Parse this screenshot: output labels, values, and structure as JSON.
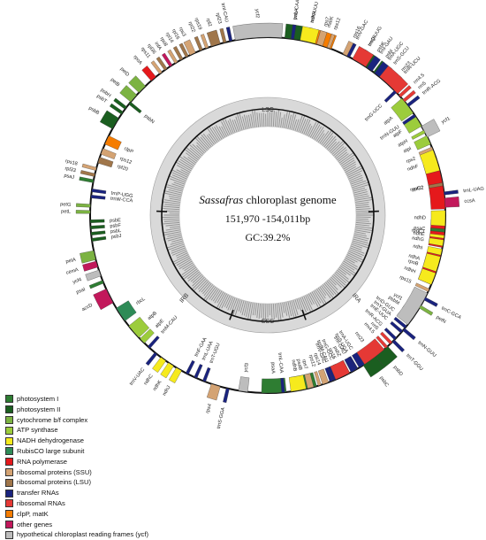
{
  "center": {
    "title_italic": "Sassafras",
    "title_rest": " chloroplast genome",
    "size": "151,970 -154,011bp",
    "gc": "GC:39.2%"
  },
  "regions": [
    "LSC",
    "IRB",
    "SSC",
    "IRA"
  ],
  "legend": [
    {
      "label": "photosystem I",
      "color": "#2e7d32"
    },
    {
      "label": "photosystem II",
      "color": "#1b5e20"
    },
    {
      "label": "cytochrome b/f complex",
      "color": "#7cb342"
    },
    {
      "label": "ATP synthase",
      "color": "#9ccc3c"
    },
    {
      "label": "NADH dehydrogenase",
      "color": "#f6ea1d"
    },
    {
      "label": "RubisCO large subunit",
      "color": "#2e8b57"
    },
    {
      "label": "RNA polymerase",
      "color": "#e5191c"
    },
    {
      "label": "ribosomal proteins (SSU)",
      "color": "#d4a373"
    },
    {
      "label": "ribosomal proteins (LSU)",
      "color": "#a0764a"
    },
    {
      "label": "transfer RNAs",
      "color": "#1a237e"
    },
    {
      "label": "ribosomal RNAs",
      "color": "#e53935"
    },
    {
      "label": "clpP, matK",
      "color": "#f57c00"
    },
    {
      "label": "other genes",
      "color": "#c2185b"
    },
    {
      "label": "hypothetical chloroplast reading frames (ycf)",
      "color": "#bdbdbd"
    }
  ],
  "genes": [
    {
      "name": "psbA",
      "angle": 8,
      "out": true,
      "w": 5,
      "color": "#1b5e20"
    },
    {
      "name": "trnK-UUU",
      "angle": 13,
      "out": true,
      "w": 1,
      "color": "#1a237e"
    },
    {
      "name": "matK",
      "angle": 18,
      "out": true,
      "w": 6,
      "color": "#f57c00"
    },
    {
      "name": "rps16",
      "angle": 26,
      "out": true,
      "w": 2,
      "color": "#d4a373"
    },
    {
      "name": "trnQ-UUG",
      "angle": 31,
      "out": true,
      "w": 1,
      "color": "#1a237e"
    },
    {
      "name": "psbK",
      "angle": 34,
      "out": true,
      "w": 2,
      "color": "#1b5e20"
    },
    {
      "name": "psbI",
      "angle": 37,
      "out": true,
      "w": 1,
      "color": "#1b5e20"
    },
    {
      "name": "trnS-GCU",
      "angle": 40,
      "out": true,
      "w": 1,
      "color": "#1a237e"
    },
    {
      "name": "trnR-UCU",
      "angle": 44,
      "out": true,
      "w": 1,
      "color": "#1a237e"
    },
    {
      "name": "trnG-UCC",
      "angle": 46,
      "out": false,
      "w": 1,
      "color": "#1a237e"
    },
    {
      "name": "atpA",
      "angle": 52,
      "out": false,
      "w": 6,
      "color": "#9ccc3c"
    },
    {
      "name": "atpF",
      "angle": 58,
      "out": false,
      "w": 4,
      "color": "#9ccc3c"
    },
    {
      "name": "atpH",
      "angle": 62,
      "out": false,
      "w": 1,
      "color": "#9ccc3c"
    },
    {
      "name": "atpI",
      "angle": 65,
      "out": false,
      "w": 3,
      "color": "#9ccc3c"
    },
    {
      "name": "rps2",
      "angle": 69,
      "out": false,
      "w": 3,
      "color": "#d4a373"
    },
    {
      "name": "rpoC2",
      "angle": 80,
      "out": false,
      "w": 16,
      "color": "#e5191c"
    },
    {
      "name": "rpoC1",
      "angle": 96,
      "out": false,
      "w": 9,
      "color": "#e5191c"
    },
    {
      "name": "rpoB",
      "angle": 108,
      "out": false,
      "w": 10,
      "color": "#e5191c"
    },
    {
      "name": "trnC-GCA",
      "angle": 118,
      "out": true,
      "w": 1,
      "color": "#1a237e"
    },
    {
      "name": "petN",
      "angle": 121,
      "out": true,
      "w": 1,
      "color": "#7cb342"
    },
    {
      "name": "psbM",
      "angle": 124,
      "out": false,
      "w": 1,
      "color": "#1b5e20"
    },
    {
      "name": "trnD-GUC",
      "angle": 127,
      "out": false,
      "w": 1,
      "color": "#1a237e"
    },
    {
      "name": "trnY-GUA",
      "angle": 129,
      "out": false,
      "w": 1,
      "color": "#1a237e"
    },
    {
      "name": "trnE-UUC",
      "angle": 131,
      "out": false,
      "w": 1,
      "color": "#1a237e"
    },
    {
      "name": "trnT-GGU",
      "angle": 135,
      "out": true,
      "w": 1,
      "color": "#1a237e"
    },
    {
      "name": "psbD",
      "angle": 140,
      "out": true,
      "w": 5,
      "color": "#1b5e20"
    },
    {
      "name": "psbC",
      "angle": 145,
      "out": true,
      "w": 5,
      "color": "#1b5e20"
    },
    {
      "name": "trnS-UGA",
      "angle": 150,
      "out": false,
      "w": 1,
      "color": "#1a237e"
    },
    {
      "name": "psbZ",
      "angle": 153,
      "out": false,
      "w": 1,
      "color": "#1b5e20"
    },
    {
      "name": "trnG-GCC",
      "angle": 156,
      "out": false,
      "w": 1,
      "color": "#1a237e"
    },
    {
      "name": "trnfM-CAU",
      "angle": 158,
      "out": false,
      "w": 1,
      "color": "#1a237e"
    },
    {
      "name": "rps14",
      "angle": 161,
      "out": false,
      "w": 2,
      "color": "#d4a373"
    },
    {
      "name": "psaB",
      "angle": 168,
      "out": false,
      "w": 8,
      "color": "#2e7d32"
    },
    {
      "name": "psaA",
      "angle": 178,
      "out": false,
      "w": 8,
      "color": "#2e7d32"
    },
    {
      "name": "ycf3",
      "angle": 188,
      "out": false,
      "w": 3,
      "color": "#bdbdbd"
    },
    {
      "name": "trnS-GGA",
      "angle": 193,
      "out": true,
      "w": 1,
      "color": "#1a237e"
    },
    {
      "name": "rps4",
      "angle": 197,
      "out": true,
      "w": 3,
      "color": "#d4a373"
    },
    {
      "name": "trnT-UGU",
      "angle": 201,
      "out": false,
      "w": 1,
      "color": "#1a237e"
    },
    {
      "name": "trnL-UAA",
      "angle": 204,
      "out": false,
      "w": 1,
      "color": "#1a237e"
    },
    {
      "name": "trnF-GAA",
      "angle": 207,
      "out": false,
      "w": 1,
      "color": "#1a237e"
    },
    {
      "name": "ndhJ",
      "angle": 210,
      "out": true,
      "w": 2,
      "color": "#f6ea1d"
    },
    {
      "name": "ndhK",
      "angle": 213,
      "out": true,
      "w": 2,
      "color": "#f6ea1d"
    },
    {
      "name": "ndhC",
      "angle": 216,
      "out": true,
      "w": 2,
      "color": "#f6ea1d"
    },
    {
      "name": "trnV-UAC",
      "angle": 219,
      "out": true,
      "w": 1,
      "color": "#1a237e"
    },
    {
      "name": "trnM-CAU",
      "angle": 222,
      "out": false,
      "w": 1,
      "color": "#1a237e"
    },
    {
      "name": "atpE",
      "angle": 225,
      "out": false,
      "w": 2,
      "color": "#9ccc3c"
    },
    {
      "name": "atpB",
      "angle": 229,
      "out": false,
      "w": 5,
      "color": "#9ccc3c"
    },
    {
      "name": "rbcL",
      "angle": 236,
      "out": false,
      "w": 5,
      "color": "#2e8b57"
    },
    {
      "name": "accD",
      "angle": 243,
      "out": true,
      "w": 5,
      "color": "#c2185b"
    },
    {
      "name": "psaI",
      "angle": 248,
      "out": true,
      "w": 1,
      "color": "#2e7d32"
    },
    {
      "name": "ycf4",
      "angle": 251,
      "out": true,
      "w": 2,
      "color": "#bdbdbd"
    },
    {
      "name": "cemA",
      "angle": 254,
      "out": true,
      "w": 2,
      "color": "#c2185b"
    },
    {
      "name": "petA",
      "angle": 257,
      "out": true,
      "w": 3,
      "color": "#7cb342"
    },
    {
      "name": "psbJ",
      "angle": 262,
      "out": false,
      "w": 1,
      "color": "#1b5e20"
    },
    {
      "name": "psbL",
      "angle": 264,
      "out": false,
      "w": 1,
      "color": "#1b5e20"
    },
    {
      "name": "psbF",
      "angle": 266,
      "out": false,
      "w": 1,
      "color": "#1b5e20"
    },
    {
      "name": "psbE",
      "angle": 268,
      "out": false,
      "w": 1,
      "color": "#1b5e20"
    },
    {
      "name": "petL",
      "angle": 271,
      "out": true,
      "w": 1,
      "color": "#7cb342"
    },
    {
      "name": "petG",
      "angle": 273,
      "out": true,
      "w": 1,
      "color": "#7cb342"
    },
    {
      "name": "trnW-CCA",
      "angle": 276,
      "out": false,
      "w": 1,
      "color": "#1a237e"
    },
    {
      "name": "trnP-UGG",
      "angle": 278,
      "out": false,
      "w": 1,
      "color": "#1a237e"
    },
    {
      "name": "psaJ",
      "angle": 281,
      "out": true,
      "w": 1,
      "color": "#2e7d32"
    },
    {
      "name": "rpl33",
      "angle": 283,
      "out": true,
      "w": 1,
      "color": "#a0764a"
    },
    {
      "name": "rps18",
      "angle": 285,
      "out": true,
      "w": 1,
      "color": "#d4a373"
    },
    {
      "name": "rpl20",
      "angle": 288,
      "out": false,
      "w": 2,
      "color": "#a0764a"
    },
    {
      "name": "rps12",
      "angle": 291,
      "out": false,
      "w": 2,
      "color": "#d4a373"
    },
    {
      "name": "clpP",
      "angle": 295,
      "out": false,
      "w": 3,
      "color": "#f57c00"
    },
    {
      "name": "psbB",
      "angle": 301,
      "out": true,
      "w": 4,
      "color": "#1b5e20"
    },
    {
      "name": "psbT",
      "angle": 305,
      "out": true,
      "w": 1,
      "color": "#1b5e20"
    },
    {
      "name": "psbH",
      "angle": 307,
      "out": true,
      "w": 1,
      "color": "#1b5e20"
    },
    {
      "name": "psbN",
      "angle": 309,
      "out": false,
      "w": 1,
      "color": "#1b5e20"
    },
    {
      "name": "petB",
      "angle": 311,
      "out": true,
      "w": 3,
      "color": "#7cb342"
    },
    {
      "name": "petD",
      "angle": 315,
      "out": true,
      "w": 3,
      "color": "#7cb342"
    },
    {
      "name": "rpoA",
      "angle": 320,
      "out": true,
      "w": 2,
      "color": "#e5191c"
    },
    {
      "name": "rps11",
      "angle": 323,
      "out": true,
      "w": 1,
      "color": "#d4a373"
    },
    {
      "name": "rpl36",
      "angle": 325,
      "out": true,
      "w": 1,
      "color": "#a0764a"
    },
    {
      "name": "infA",
      "angle": 327,
      "out": true,
      "w": 1,
      "color": "#c2185b"
    },
    {
      "name": "rps8",
      "angle": 329,
      "out": true,
      "w": 1,
      "color": "#d4a373"
    },
    {
      "name": "rpl14",
      "angle": 331,
      "out": true,
      "w": 1,
      "color": "#a0764a"
    },
    {
      "name": "rpl16",
      "angle": 333,
      "out": true,
      "w": 1,
      "color": "#a0764a"
    },
    {
      "name": "rps3",
      "angle": 335,
      "out": true,
      "w": 2,
      "color": "#d4a373"
    },
    {
      "name": "rpl22",
      "angle": 338,
      "out": true,
      "w": 1,
      "color": "#a0764a"
    },
    {
      "name": "rps19",
      "angle": 340,
      "out": true,
      "w": 1,
      "color": "#d4a373"
    },
    {
      "name": "rpl2",
      "angle": 343,
      "out": true,
      "w": 3,
      "color": "#a0764a"
    },
    {
      "name": "rpl23",
      "angle": 346,
      "out": true,
      "w": 1,
      "color": "#a0764a"
    },
    {
      "name": "trnI-CAU",
      "angle": 348,
      "out": true,
      "w": 1,
      "color": "#1a237e"
    },
    {
      "name": "ycf2",
      "angle": 357,
      "out": true,
      "w": 15,
      "color": "#bdbdbd"
    },
    {
      "name": "trnL-CAA",
      "angle": 8,
      "out": true,
      "w": 1,
      "color": "#1a237e"
    },
    {
      "name": "ndhB",
      "angle": 13,
      "out": true,
      "w": 5,
      "color": "#f6ea1d"
    },
    {
      "name": "rps7",
      "angle": 17,
      "out": true,
      "w": 2,
      "color": "#d4a373"
    },
    {
      "name": "rps12",
      "angle": 20,
      "out": true,
      "w": 1,
      "color": "#d4a373"
    },
    {
      "name": "trnV-GAC",
      "angle": 27,
      "out": true,
      "w": 1,
      "color": "#1a237e"
    },
    {
      "name": "rrn16",
      "angle": 31,
      "out": true,
      "w": 5,
      "color": "#e53935"
    },
    {
      "name": "trnI-GAU",
      "angle": 35,
      "out": true,
      "w": 2,
      "color": "#1a237e"
    },
    {
      "name": "trnA-UGC",
      "angle": 38,
      "out": true,
      "w": 2,
      "color": "#1a237e"
    },
    {
      "name": "rrn23",
      "angle": 43,
      "out": true,
      "w": 8,
      "color": "#e53935"
    },
    {
      "name": "rrn4.5",
      "angle": 48,
      "out": true,
      "w": 1,
      "color": "#e53935"
    },
    {
      "name": "rrn5",
      "angle": 50,
      "out": true,
      "w": 1,
      "color": "#e53935"
    },
    {
      "name": "trnR-ACG",
      "angle": 52,
      "out": true,
      "w": 1,
      "color": "#1a237e"
    },
    {
      "name": "trnN-GUU",
      "angle": 56,
      "out": false,
      "w": 1,
      "color": "#1a237e"
    },
    {
      "name": "ycf1",
      "angle": 62,
      "out": true,
      "w": 4,
      "color": "#bdbdbd"
    },
    {
      "name": "ndhF",
      "angle": 72,
      "out": false,
      "w": 7,
      "color": "#f6ea1d"
    },
    {
      "name": "rpl32",
      "angle": 80,
      "out": false,
      "w": 1,
      "color": "#a0764a"
    },
    {
      "name": "trnL-UAG",
      "angle": 83,
      "out": true,
      "w": 1,
      "color": "#1a237e"
    },
    {
      "name": "ccsA",
      "angle": 86,
      "out": true,
      "w": 3,
      "color": "#c2185b"
    },
    {
      "name": "ndhD",
      "angle": 91,
      "out": false,
      "w": 5,
      "color": "#f6ea1d"
    },
    {
      "name": "psaC",
      "angle": 95,
      "out": false,
      "w": 1,
      "color": "#2e7d32"
    },
    {
      "name": "ndhE",
      "angle": 97,
      "out": false,
      "w": 1,
      "color": "#f6ea1d"
    },
    {
      "name": "ndhG",
      "angle": 99,
      "out": false,
      "w": 2,
      "color": "#f6ea1d"
    },
    {
      "name": "ndhI",
      "angle": 102,
      "out": false,
      "w": 2,
      "color": "#f6ea1d"
    },
    {
      "name": "ndhA",
      "angle": 106,
      "out": false,
      "w": 5,
      "color": "#f6ea1d"
    },
    {
      "name": "ndhH",
      "angle": 111,
      "out": false,
      "w": 4,
      "color": "#f6ea1d"
    },
    {
      "name": "rps15",
      "angle": 115,
      "out": false,
      "w": 1,
      "color": "#d4a373"
    },
    {
      "name": "ycf1",
      "angle": 122,
      "out": false,
      "w": 12,
      "color": "#bdbdbd"
    },
    {
      "name": "trnN-GUU",
      "angle": 130,
      "out": true,
      "w": 1,
      "color": "#1a237e"
    },
    {
      "name": "trnR-ACG",
      "angle": 134,
      "out": false,
      "w": 1,
      "color": "#1a237e"
    },
    {
      "name": "rrn5",
      "angle": 136,
      "out": false,
      "w": 1,
      "color": "#e53935"
    },
    {
      "name": "rrn4.5",
      "angle": 138,
      "out": false,
      "w": 1,
      "color": "#e53935"
    },
    {
      "name": "rrn23",
      "angle": 143,
      "out": false,
      "w": 8,
      "color": "#e53935"
    },
    {
      "name": "trnA-UGC",
      "angle": 148,
      "out": false,
      "w": 2,
      "color": "#1a237e"
    },
    {
      "name": "trnI-GAU",
      "angle": 151,
      "out": false,
      "w": 2,
      "color": "#1a237e"
    },
    {
      "name": "rrn16",
      "angle": 155,
      "out": false,
      "w": 5,
      "color": "#e53935"
    },
    {
      "name": "trnV-GAC",
      "angle": 159,
      "out": false,
      "w": 1,
      "color": "#1a237e"
    },
    {
      "name": "rps12",
      "angle": 163,
      "out": false,
      "w": 1,
      "color": "#d4a373"
    },
    {
      "name": "rps7",
      "angle": 166,
      "out": false,
      "w": 2,
      "color": "#d4a373"
    },
    {
      "name": "ndhB",
      "angle": 170,
      "out": false,
      "w": 5,
      "color": "#f6ea1d"
    },
    {
      "name": "trnL-CAA",
      "angle": 175,
      "out": false,
      "w": 1,
      "color": "#1a237e"
    }
  ]
}
